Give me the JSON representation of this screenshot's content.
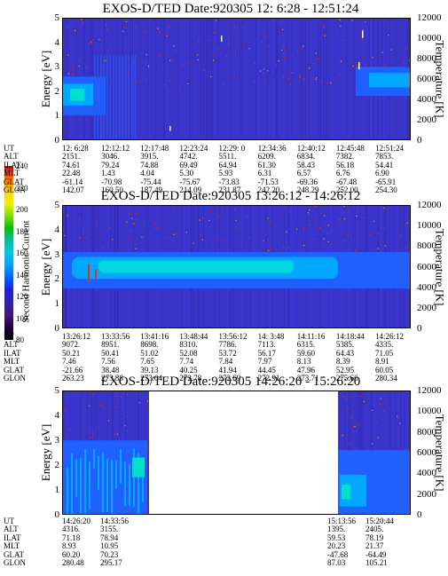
{
  "colorbar": {
    "label": "Second Harmonic Current",
    "ticks": [
      "240",
      "220",
      "200",
      "180",
      "160",
      "140",
      "120",
      "100",
      "80"
    ],
    "colors": [
      "#e00000",
      "#ff6a00",
      "#ffd000",
      "#f0f000",
      "#80e000",
      "#00c000",
      "#00c0a0",
      "#00c8e8",
      "#00a0ff",
      "#0060ff",
      "#2020e0",
      "#3020b0",
      "#401880",
      "#200040",
      "#000000"
    ]
  },
  "panels": [
    {
      "title": "EXOS-D/TED   Date:920305  12: 6:28 - 12:51:24",
      "ylabel_left": "Energy [eV]",
      "ylabel_right": "Temperature [K]",
      "energy_ticks": [
        "5",
        "4",
        "3",
        "2",
        "1",
        "0"
      ],
      "temp_ticks": [
        "12000",
        "10000",
        "8000",
        "6000",
        "4000",
        "2000",
        "0"
      ],
      "ephemeris_keys": [
        "UT",
        "ALT",
        "ILAT",
        "MLT",
        "GLAT",
        "GLON"
      ],
      "ephemeris_cols": [
        [
          "12: 6:28",
          "2151.",
          "74.61",
          "22.48",
          "-61.14",
          "142.07"
        ],
        [
          "12:12:12",
          "3046.",
          "79.24",
          "1.43",
          "-70.98",
          "160.50"
        ],
        [
          "12:17:48",
          "3915.",
          "74.88",
          "4.04",
          "-75.44",
          "187.49"
        ],
        [
          "12:23:24",
          "4742.",
          "69.49",
          "5.30",
          "-75.67",
          "214.09"
        ],
        [
          "12:29: 0",
          "5511.",
          "64.94",
          "5.93",
          "-73.83",
          "231.87"
        ],
        [
          "12:34:36",
          "6209.",
          "61.30",
          "6.31",
          "-71.53",
          "242.20"
        ],
        [
          "12:40:12",
          "6834.",
          "58.43",
          "6.57",
          "-69.36",
          "248.29"
        ],
        [
          "12:45:48",
          "7382.",
          "56.18",
          "6.76",
          "-67.48",
          "252.00"
        ],
        [
          "12:51:24",
          "7853.",
          "54.41",
          "6.90",
          "-65.91",
          "254.30"
        ]
      ]
    },
    {
      "title": "EXOS-D/TED   Date:920305  13:26:12 - 14:26:12",
      "ylabel_left": "Energy [eV]",
      "ylabel_right": "Temperature [K]",
      "energy_ticks": [
        "5",
        "4",
        "3",
        "2",
        "1",
        "0"
      ],
      "temp_ticks": [
        "12000",
        "10000",
        "8000",
        "6000",
        "4000",
        "2000",
        "0"
      ],
      "ephemeris_keys": [
        "UT",
        "ALT",
        "ILAT",
        "MLT",
        "GLAT",
        "GLON"
      ],
      "ephemeris_cols": [
        [
          "13:26:12",
          "9072.",
          "50.21",
          "7.46",
          "-21.66",
          "263.23"
        ],
        [
          "13:33:56",
          "8951.",
          "50.41",
          "7.56",
          "38.48",
          "273.38"
        ],
        [
          "13:41:16",
          "8698.",
          "51.02",
          "7.65",
          "39.13",
          "273.04"
        ],
        [
          "13:48:44",
          "8310.",
          "52.08",
          "7.74",
          "40.25",
          "272.78"
        ],
        [
          "13:56:12",
          "7786.",
          "53.72",
          "7.84",
          "41.94",
          "272.69"
        ],
        [
          "14: 3:48",
          "7113.",
          "56.17",
          "7.97",
          "44.45",
          "272.91"
        ],
        [
          "14:11:16",
          "6315.",
          "59.60",
          "8.13",
          "47.96",
          "273.71"
        ],
        [
          "14:18:44",
          "5385.",
          "64.43",
          "8.39",
          "52.95",
          "275.66"
        ],
        [
          "14:26:12",
          "4335.",
          "71.05",
          "8.91",
          "60.05",
          "280.34"
        ]
      ]
    },
    {
      "title": "EXOS-D/TED   Date:920305  14:26:20 - 15:26:20",
      "ylabel_left": "Energy [eV]",
      "ylabel_right": "Temperature [K]",
      "energy_ticks": [
        "5",
        "4",
        "3",
        "2",
        "1",
        "0"
      ],
      "temp_ticks": [
        "12000",
        "10000",
        "8000",
        "6000",
        "4000",
        "2000",
        "0"
      ],
      "ephemeris_keys": [
        "UT",
        "ALT",
        "ILAT",
        "MLT",
        "GLAT",
        "GLON"
      ],
      "ephemeris_cols": [
        [
          "14:26:20",
          "4316.",
          "71.18",
          "8.93",
          "60.20",
          "280.48"
        ],
        [
          "14:33:56",
          "3155.",
          "78.94",
          "10.95",
          "70.23",
          "295.17"
        ],
        [
          "15:13:56",
          "1395.",
          "59.53",
          "20.23",
          "-47.68",
          "87.03"
        ],
        [
          "15:20:44",
          "2405.",
          "78.19",
          "21.37",
          "-64.49",
          "105.21"
        ]
      ]
    }
  ],
  "chart_data": [
    {
      "type": "heatmap",
      "title": "EXOS-D/TED   Date:920305  12: 6:28 - 12:51:24",
      "x_ticks": [
        "12: 6:28",
        "12:12:12",
        "12:17:48",
        "12:23:24",
        "12:29: 0",
        "12:34:36",
        "12:40:12",
        "12:45:48",
        "12:51:24"
      ],
      "ylabel": "Energy [eV]",
      "ylim": [
        0,
        5
      ],
      "y2label": "Temperature [K]",
      "y2lim": [
        0,
        12000
      ],
      "colorbar_label": "Second Harmonic Current",
      "colorbar_range": [
        80,
        240
      ],
      "features": [
        {
          "x_range": [
            "12: 6:28",
            "12:12:12"
          ],
          "energy_range": [
            1.0,
            2.5
          ],
          "level": "high"
        },
        {
          "x_range": [
            "12:45:48",
            "12:51:24"
          ],
          "energy_range": [
            2.0,
            3.0
          ],
          "level": "high"
        }
      ]
    },
    {
      "type": "heatmap",
      "title": "EXOS-D/TED   Date:920305  13:26:12 - 14:26:12",
      "x_ticks": [
        "13:26:12",
        "13:33:56",
        "13:41:16",
        "13:48:44",
        "13:56:12",
        "14: 3:48",
        "14:11:16",
        "14:18:44",
        "14:26:12"
      ],
      "ylabel": "Energy [eV]",
      "ylim": [
        0,
        5
      ],
      "y2label": "Temperature [K]",
      "y2lim": [
        0,
        12000
      ],
      "colorbar_label": "Second Harmonic Current",
      "colorbar_range": [
        80,
        240
      ],
      "features": [
        {
          "x_range": [
            "13:26:12",
            "14:11:16"
          ],
          "energy_range": [
            2.0,
            3.0
          ],
          "level": "high"
        }
      ]
    },
    {
      "type": "heatmap",
      "title": "EXOS-D/TED   Date:920305  14:26:20 - 15:26:20",
      "x_ticks": [
        "14:26:20",
        "14:33:56",
        "15:13:56",
        "15:20:44"
      ],
      "ylabel": "Energy [eV]",
      "ylim": [
        0,
        5
      ],
      "y2label": "Temperature [K]",
      "y2lim": [
        0,
        12000
      ],
      "colorbar_label": "Second Harmonic Current",
      "colorbar_range": [
        80,
        240
      ],
      "data_gap": [
        "14:41:00",
        "15:13:56"
      ],
      "features": [
        {
          "x_range": [
            "14:26:20",
            "14:40:00"
          ],
          "energy_range": [
            0.0,
            3.0
          ],
          "level": "high"
        },
        {
          "x_range": [
            "15:13:56",
            "15:26:20"
          ],
          "energy_range": [
            0.0,
            2.5
          ],
          "level": "high"
        }
      ]
    }
  ]
}
